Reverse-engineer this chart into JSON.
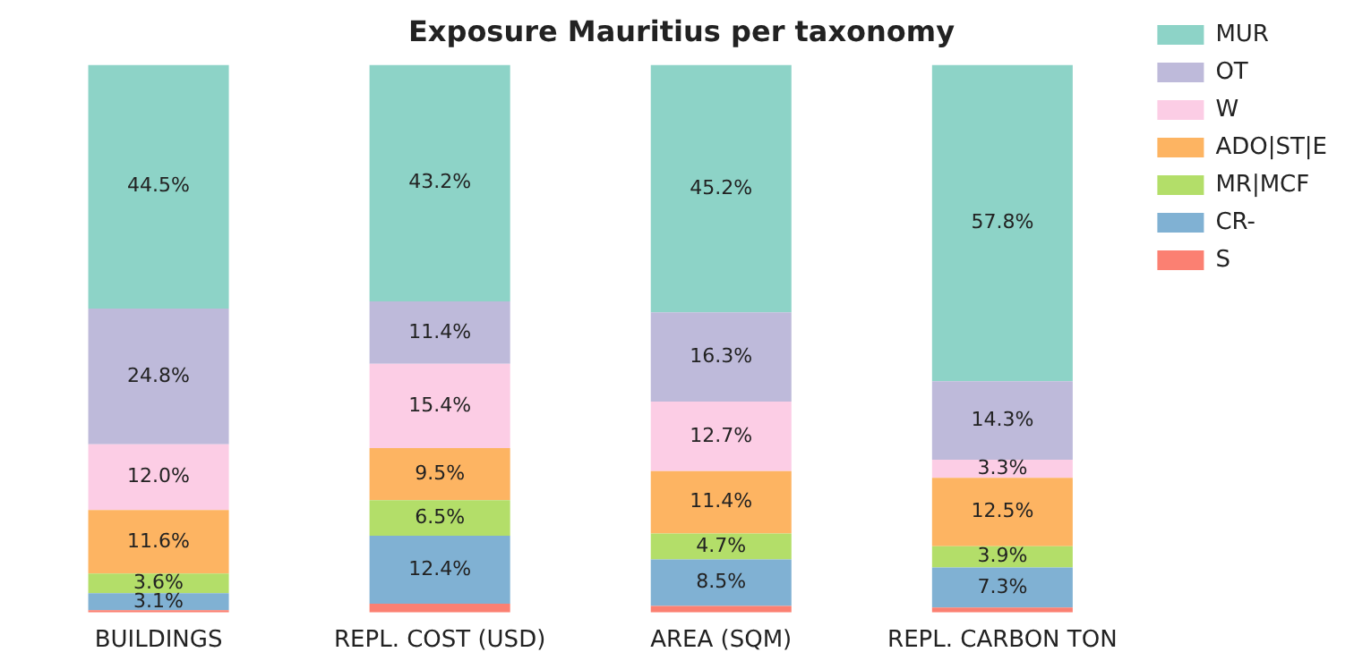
{
  "chart_data": {
    "type": "bar",
    "title": "Exposure Mauritius per taxonomy",
    "categories": [
      "BUILDINGS",
      "REPL. COST (USD)",
      "AREA (SQM)",
      "REPL. CARBON TON"
    ],
    "stacked": true,
    "ylim": [
      0,
      100
    ],
    "tick_labels": "x",
    "grid": false,
    "legend": "right",
    "series": [
      {
        "name": "S",
        "color": "#fb8072",
        "values": [
          0.4,
          1.6,
          1.2,
          0.9
        ],
        "value_labels": [
          null,
          null,
          null,
          null
        ]
      },
      {
        "name": "CR-",
        "color": "#80b1d3",
        "values": [
          3.1,
          12.4,
          8.5,
          7.3
        ],
        "value_labels": [
          "3.1%",
          "12.4%",
          "8.5%",
          "7.3%"
        ]
      },
      {
        "name": "MR|MCF",
        "color": "#b3de69",
        "values": [
          3.6,
          6.5,
          4.7,
          3.9
        ],
        "value_labels": [
          "3.6%",
          "6.5%",
          "4.7%",
          "3.9%"
        ]
      },
      {
        "name": "ADO|ST|E",
        "color": "#fdb462",
        "values": [
          11.6,
          9.5,
          11.4,
          12.5
        ],
        "value_labels": [
          "11.6%",
          "9.5%",
          "11.4%",
          "12.5%"
        ]
      },
      {
        "name": "W",
        "color": "#fccde5",
        "values": [
          12.0,
          15.4,
          12.7,
          3.3
        ],
        "value_labels": [
          "12.0%",
          "15.4%",
          "12.7%",
          "3.3%"
        ]
      },
      {
        "name": "OT",
        "color": "#bebada",
        "values": [
          24.8,
          11.4,
          16.3,
          14.3
        ],
        "value_labels": [
          "24.8%",
          "11.4%",
          "16.3%",
          "14.3%"
        ]
      },
      {
        "name": "MUR",
        "color": "#8dd3c7",
        "values": [
          44.5,
          43.2,
          45.2,
          57.8
        ],
        "value_labels": [
          "44.5%",
          "43.2%",
          "45.2%",
          "57.8%"
        ]
      }
    ]
  }
}
